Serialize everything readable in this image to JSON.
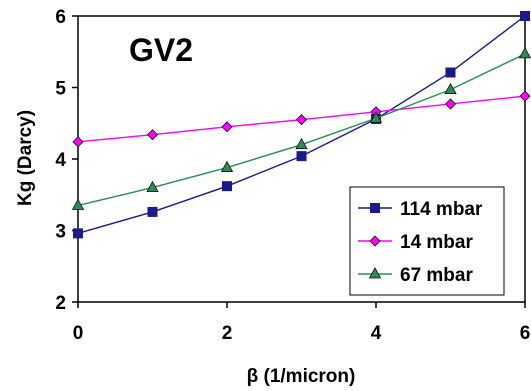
{
  "chart_data": {
    "type": "line",
    "title": "GV2",
    "xlabel": "β (1/micron)",
    "ylabel": "Kg (Darcy)",
    "xlim": [
      0,
      6
    ],
    "ylim": [
      2,
      6
    ],
    "x_ticks": [
      "0",
      "2",
      "4",
      "6"
    ],
    "y_ticks": [
      "2",
      "3",
      "4",
      "5",
      "6"
    ],
    "grid": false,
    "legend_position": "bottom-right",
    "x": [
      0,
      1,
      2,
      3,
      4,
      5,
      6
    ],
    "series": [
      {
        "name": "114 mbar",
        "color": "#1a1a8c",
        "marker": "square",
        "values": [
          2.96,
          3.26,
          3.62,
          4.04,
          4.56,
          5.21,
          6.0
        ]
      },
      {
        "name": "14 mbar",
        "color": "#ff00ff",
        "marker": "diamond",
        "values": [
          4.24,
          4.34,
          4.45,
          4.55,
          4.66,
          4.77,
          4.88
        ]
      },
      {
        "name": "67 mbar",
        "color": "#2e8b57",
        "marker": "triangle",
        "values": [
          3.35,
          3.6,
          3.88,
          4.2,
          4.57,
          4.97,
          5.47
        ]
      }
    ]
  }
}
